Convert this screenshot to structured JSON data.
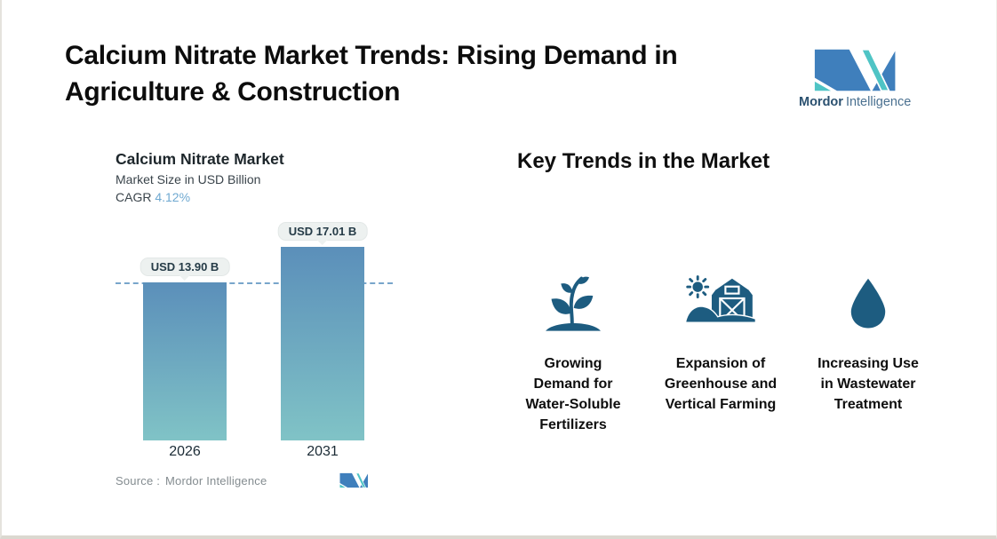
{
  "header": {
    "title_line1": "Calcium Nitrate Market Trends: Rising Demand in",
    "title_line2": "Agriculture & Construction"
  },
  "brand": {
    "name_bold": "Mordor",
    "name_light": "Intelligence",
    "logo_blue": "#3f7fbc",
    "logo_teal": "#4fc4c5"
  },
  "chart": {
    "title": "Calcium Nitrate Market",
    "subtitle": "Market Size in USD Billion",
    "cagr_label": "CAGR",
    "cagr_value": "4.12%",
    "cagr_value_color": "#6fa9d1",
    "source_label": "Source :",
    "source_value": "Mordor Intelligence"
  },
  "chart_data": {
    "type": "bar",
    "title": "Calcium Nitrate Market",
    "ylabel": "Market Size in USD Billion",
    "categories": [
      "2026",
      "2031"
    ],
    "values": [
      13.9,
      17.01
    ],
    "value_labels": [
      "USD 13.90 B",
      "USD 17.01 B"
    ],
    "unit": "USD Billion",
    "cagr_percent": 4.12,
    "ylim": [
      0,
      17.01
    ],
    "reference_line_at": 13.9,
    "reference_line_style": "dashed",
    "reference_line_color": "#78a5cb",
    "bar_gradient_top": "#5b8fba",
    "bar_gradient_bottom": "#80c3c6",
    "grid": "off",
    "legend": "none"
  },
  "trends": {
    "heading": "Key Trends in the Market",
    "icon_color": "#1d5c80",
    "items": [
      {
        "icon": "seedling-icon",
        "label": "Growing Demand for Water-Soluble Fertilizers",
        "lines": [
          "Growing",
          "Demand for",
          "Water-Soluble",
          "Fertilizers"
        ]
      },
      {
        "icon": "barn-icon",
        "label": "Expansion of Greenhouse and Vertical Farming",
        "lines": [
          "Expansion of",
          "Greenhouse and",
          "Vertical Farming"
        ]
      },
      {
        "icon": "water-drop-icon",
        "label": "Increasing Use in Wastewater Treatment",
        "lines": [
          "Increasing Use",
          "in Wastewater",
          "Treatment"
        ]
      }
    ]
  }
}
